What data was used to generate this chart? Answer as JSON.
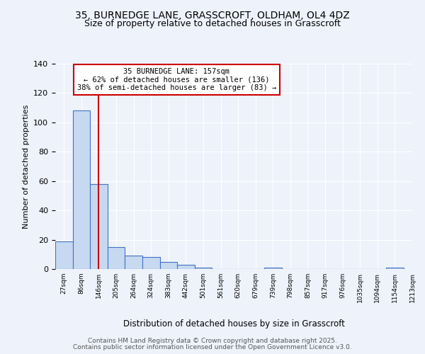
{
  "title1": "35, BURNEDGE LANE, GRASSCROFT, OLDHAM, OL4 4DZ",
  "title2": "Size of property relative to detached houses in Grasscroft",
  "bar_values": [
    19,
    108,
    58,
    15,
    9,
    8,
    5,
    3,
    1,
    0,
    0,
    0,
    1,
    0,
    0,
    0,
    0,
    0,
    0,
    1
  ],
  "bin_labels": [
    "27sqm",
    "86sqm",
    "146sqm",
    "205sqm",
    "264sqm",
    "324sqm",
    "383sqm",
    "442sqm",
    "501sqm",
    "561sqm",
    "620sqm",
    "679sqm",
    "739sqm",
    "798sqm",
    "857sqm",
    "917sqm",
    "976sqm",
    "1035sqm",
    "1094sqm",
    "1154sqm",
    "1213sqm"
  ],
  "bar_color": "#c6d9f1",
  "bar_edge_color": "#4472c4",
  "vline_x": 2.0,
  "vline_color": "#cc0000",
  "annotation_title": "35 BURNEDGE LANE: 157sqm",
  "annotation_line1": "← 62% of detached houses are smaller (136)",
  "annotation_line2": "38% of semi-detached houses are larger (83) →",
  "annotation_box_edge": "#cc0000",
  "xlabel": "Distribution of detached houses by size in Grasscroft",
  "ylabel": "Number of detached properties",
  "ylim": [
    0,
    140
  ],
  "yticks": [
    0,
    20,
    40,
    60,
    80,
    100,
    120,
    140
  ],
  "footer1": "Contains HM Land Registry data © Crown copyright and database right 2025.",
  "footer2": "Contains public sector information licensed under the Open Government Licence v3.0.",
  "bg_color": "#eef2fb",
  "plot_bg_color": "#eef2fb"
}
